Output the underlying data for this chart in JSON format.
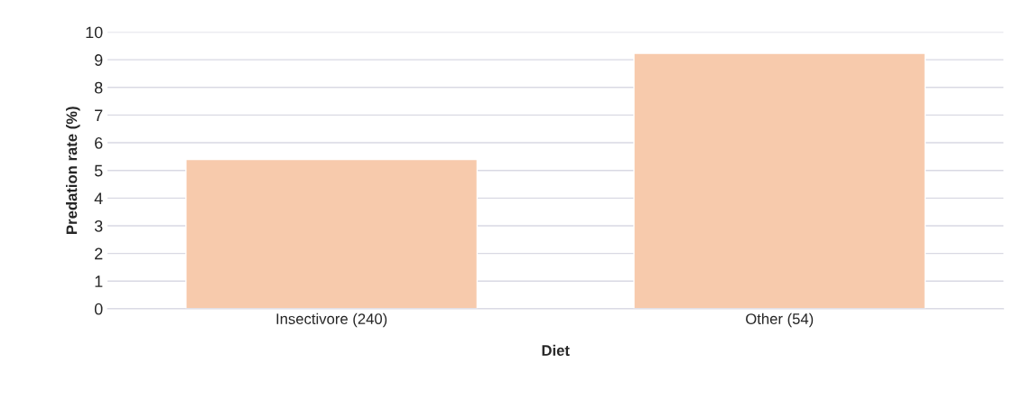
{
  "chart_data": {
    "type": "bar",
    "xlabel": "Diet",
    "ylabel": "Predation rate (%)",
    "categories": [
      "Insectivore (240)",
      "Other (54)"
    ],
    "values": [
      5.4,
      9.23
    ],
    "color": "#f7caac",
    "ylim": [
      0,
      10
    ],
    "yticks": [
      0,
      1,
      2,
      3,
      4,
      5,
      6,
      7,
      8,
      9,
      10
    ],
    "grid": "y"
  }
}
